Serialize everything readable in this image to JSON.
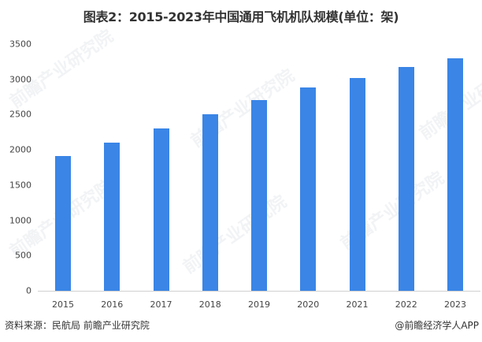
{
  "title": "图表2：2015-2023年中国通用飞机机队规模(单位：架)",
  "source": "资料来源：民航局 前瞻产业研究院",
  "credit": "@前瞻经济学人APP",
  "watermark": "前瞻产业研究院",
  "colors": {
    "bar": "#3a85e6",
    "axis": "#d0d0d0"
  },
  "chart_data": {
    "type": "bar",
    "title": "图表2：2015-2023年中国通用飞机机队规模(单位：架)",
    "xlabel": "",
    "ylabel": "",
    "categories": [
      "2015",
      "2016",
      "2017",
      "2018",
      "2019",
      "2020",
      "2021",
      "2022",
      "2023"
    ],
    "values": [
      1910,
      2100,
      2300,
      2500,
      2710,
      2890,
      3020,
      3180,
      3300
    ],
    "ylim": [
      0,
      3500
    ],
    "yticks": [
      "0",
      "500",
      "1000",
      "1500",
      "2000",
      "2500",
      "3000",
      "3500"
    ],
    "grid": false,
    "legend": null
  }
}
